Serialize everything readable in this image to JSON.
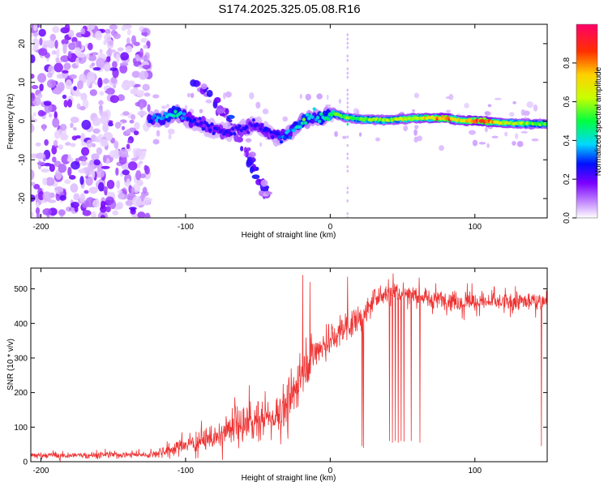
{
  "title": "S174.2025.325.05.08.R16",
  "chart_data": [
    {
      "type": "heatmap",
      "xlabel": "Height of straight line (km)",
      "ylabel": "Frequency (Hz)",
      "xlim": [
        -207,
        150
      ],
      "ylim": [
        -25,
        25
      ],
      "xticks": [
        -200,
        -100,
        0,
        100
      ],
      "xtick_labels": [
        "-200",
        "-100",
        "0",
        "100"
      ],
      "yticks": [
        -20,
        -10,
        0,
        10,
        20
      ],
      "ytick_labels": [
        "-20",
        "-10",
        "0",
        "10",
        "20"
      ],
      "colorbar": {
        "label": "Normalized spectral amplitude",
        "range": [
          0,
          1
        ],
        "ticks": [
          0,
          0.2,
          0.4,
          0.6,
          0.8
        ],
        "tick_labels": [
          "0.0",
          "0.2",
          "0.4",
          "0.6",
          "0.8"
        ],
        "colors": [
          "#ffffff",
          "#c48cff",
          "#7a00ff",
          "#0010ff",
          "#00d8ff",
          "#00ff40",
          "#c8ff00",
          "#ffd000",
          "#ff3000",
          "#ff0068"
        ]
      },
      "features": {
        "noise_region_x": [
          -207,
          -125
        ],
        "carrier_track": [
          {
            "x": -125,
            "freq": 0.5,
            "amp": 0.35
          },
          {
            "x": -115,
            "freq": 1.0,
            "amp": 0.45
          },
          {
            "x": -105,
            "freq": 2.0,
            "amp": 0.5
          },
          {
            "x": -98,
            "freq": 0.5,
            "amp": 0.35
          },
          {
            "x": -90,
            "freq": -1.0,
            "amp": 0.3
          },
          {
            "x": -80,
            "freq": -2.0,
            "amp": 0.3
          },
          {
            "x": -70,
            "freq": -3.0,
            "amp": 0.3
          },
          {
            "x": -60,
            "freq": -2.0,
            "amp": 0.3
          },
          {
            "x": -50,
            "freq": -1.0,
            "amp": 0.3
          },
          {
            "x": -40,
            "freq": -3.5,
            "amp": 0.3
          },
          {
            "x": -33,
            "freq": -4.5,
            "amp": 0.4
          },
          {
            "x": -25,
            "freq": -2.0,
            "amp": 0.45
          },
          {
            "x": -18,
            "freq": 0.0,
            "amp": 0.6
          },
          {
            "x": -12,
            "freq": 1.5,
            "amp": 0.45
          },
          {
            "x": -5,
            "freq": 0.5,
            "amp": 0.5
          },
          {
            "x": 2,
            "freq": 2.0,
            "amp": 0.6
          },
          {
            "x": 10,
            "freq": 1.0,
            "amp": 0.6
          },
          {
            "x": 20,
            "freq": 0.5,
            "amp": 0.6
          },
          {
            "x": 40,
            "freq": 0.3,
            "amp": 0.65
          },
          {
            "x": 60,
            "freq": 0.8,
            "amp": 0.7
          },
          {
            "x": 80,
            "freq": 0.8,
            "amp": 0.85
          },
          {
            "x": 90,
            "freq": 0.2,
            "amp": 0.75
          },
          {
            "x": 105,
            "freq": 0.0,
            "amp": 0.95
          },
          {
            "x": 120,
            "freq": -0.5,
            "amp": 0.7
          },
          {
            "x": 135,
            "freq": -0.6,
            "amp": 0.65
          },
          {
            "x": 150,
            "freq": -0.8,
            "amp": 0.6
          }
        ],
        "diagonal_streak": [
          {
            "x": -95,
            "freq": 10,
            "amp": 0.3
          },
          {
            "x": -85,
            "freq": 7,
            "amp": 0.3
          },
          {
            "x": -75,
            "freq": 3,
            "amp": 0.35
          },
          {
            "x": -65,
            "freq": -2,
            "amp": 0.3
          },
          {
            "x": -58,
            "freq": -7,
            "amp": 0.3
          },
          {
            "x": -55,
            "freq": -11,
            "amp": 0.3
          },
          {
            "x": -45,
            "freq": -17,
            "amp": 0.25
          },
          {
            "x": -45,
            "freq": -19,
            "amp": 0.25
          }
        ],
        "vertical_line_x": 12
      }
    },
    {
      "type": "line",
      "xlabel": "Height of straight line (km)",
      "ylabel": "SNR (10 * v/v)",
      "xlim": [
        -207,
        150
      ],
      "ylim": [
        0,
        560
      ],
      "xticks": [
        -200,
        -100,
        0,
        100
      ],
      "xtick_labels": [
        "-200",
        "-100",
        "0",
        "100"
      ],
      "yticks": [
        0,
        100,
        200,
        300,
        400,
        500
      ],
      "ytick_labels": [
        "0",
        "100",
        "200",
        "300",
        "400",
        "500"
      ],
      "color": "#ee3333",
      "series": [
        {
          "name": "SNR",
          "trend_x": [
            -207,
            -180,
            -150,
            -125,
            -115,
            -100,
            -80,
            -60,
            -50,
            -40,
            -30,
            -25,
            -20,
            -15,
            -10,
            0,
            10,
            20,
            25,
            30,
            40,
            50,
            60,
            70,
            80,
            100,
            120,
            140,
            150
          ],
          "trend_y": [
            18,
            18,
            20,
            20,
            30,
            50,
            70,
            110,
            120,
            130,
            160,
            200,
            270,
            300,
            320,
            350,
            390,
            410,
            430,
            470,
            490,
            490,
            480,
            470,
            470,
            460,
            460,
            465,
            470
          ],
          "spread": [
            14,
            14,
            14,
            14,
            25,
            40,
            50,
            80,
            90,
            90,
            110,
            110,
            120,
            110,
            90,
            80,
            70,
            60,
            55,
            50,
            45,
            45,
            45,
            45,
            45,
            45,
            45,
            45,
            40
          ],
          "dropouts": [
            {
              "x": 22,
              "y": 45
            },
            {
              "x": 23,
              "y": 40
            },
            {
              "x": 41,
              "y": 60
            },
            {
              "x": 43,
              "y": 55
            },
            {
              "x": 45,
              "y": 60
            },
            {
              "x": 47,
              "y": 55
            },
            {
              "x": 49,
              "y": 60
            },
            {
              "x": 51,
              "y": 58
            },
            {
              "x": 56,
              "y": 60
            },
            {
              "x": 62,
              "y": 55
            },
            {
              "x": 146,
              "y": 45
            }
          ],
          "spikes": [
            {
              "x": -19,
              "y": 540
            },
            {
              "x": -14,
              "y": 520
            },
            {
              "x": 12,
              "y": 535
            }
          ]
        }
      ]
    }
  ]
}
